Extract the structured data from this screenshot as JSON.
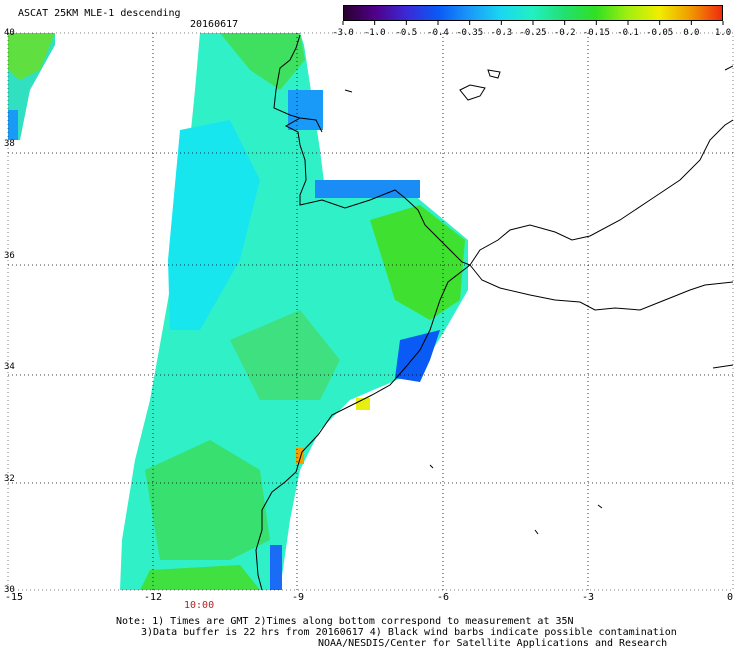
{
  "header": {
    "title": "ASCAT 25KM MLE-1 descending",
    "date": "20160617"
  },
  "colorbar": {
    "labels": [
      "-3.0",
      "-1.0",
      "-0.5",
      "-0.4",
      "-0.35",
      "-0.3",
      "-0.25",
      "-0.2",
      "-0.15",
      "-0.1",
      "-0.05",
      "0.0",
      "1.0"
    ],
    "colors": [
      "#2a0030",
      "#50008a",
      "#3a2ad8",
      "#0a5af6",
      "#1a9af8",
      "#1ad8f0",
      "#22f0c0",
      "#22e070",
      "#30e022",
      "#a0ee10",
      "#f0ee00",
      "#f09a00",
      "#f02a10"
    ]
  },
  "map": {
    "lon_min": -15,
    "lon_max": 0,
    "lat_min": 30,
    "lat_max": 40,
    "x_labels": [
      "-15",
      "-12",
      "-9",
      "-6",
      "-3",
      "0"
    ],
    "y_labels": [
      "40",
      "38",
      "36",
      "34",
      "32",
      "30"
    ],
    "time_label": "10:00",
    "grid": "dotted"
  },
  "footer": {
    "note_line1": "Note: 1) Times are GMT 2)Times along bottom correspond to measurement at 35N",
    "note_line2": "3)Data buffer is 22 hrs from 20160617 4) Black wind barbs indicate possible contamination",
    "credit": "NOAA/NESDIS/Center for Satellite Applications and Research"
  }
}
